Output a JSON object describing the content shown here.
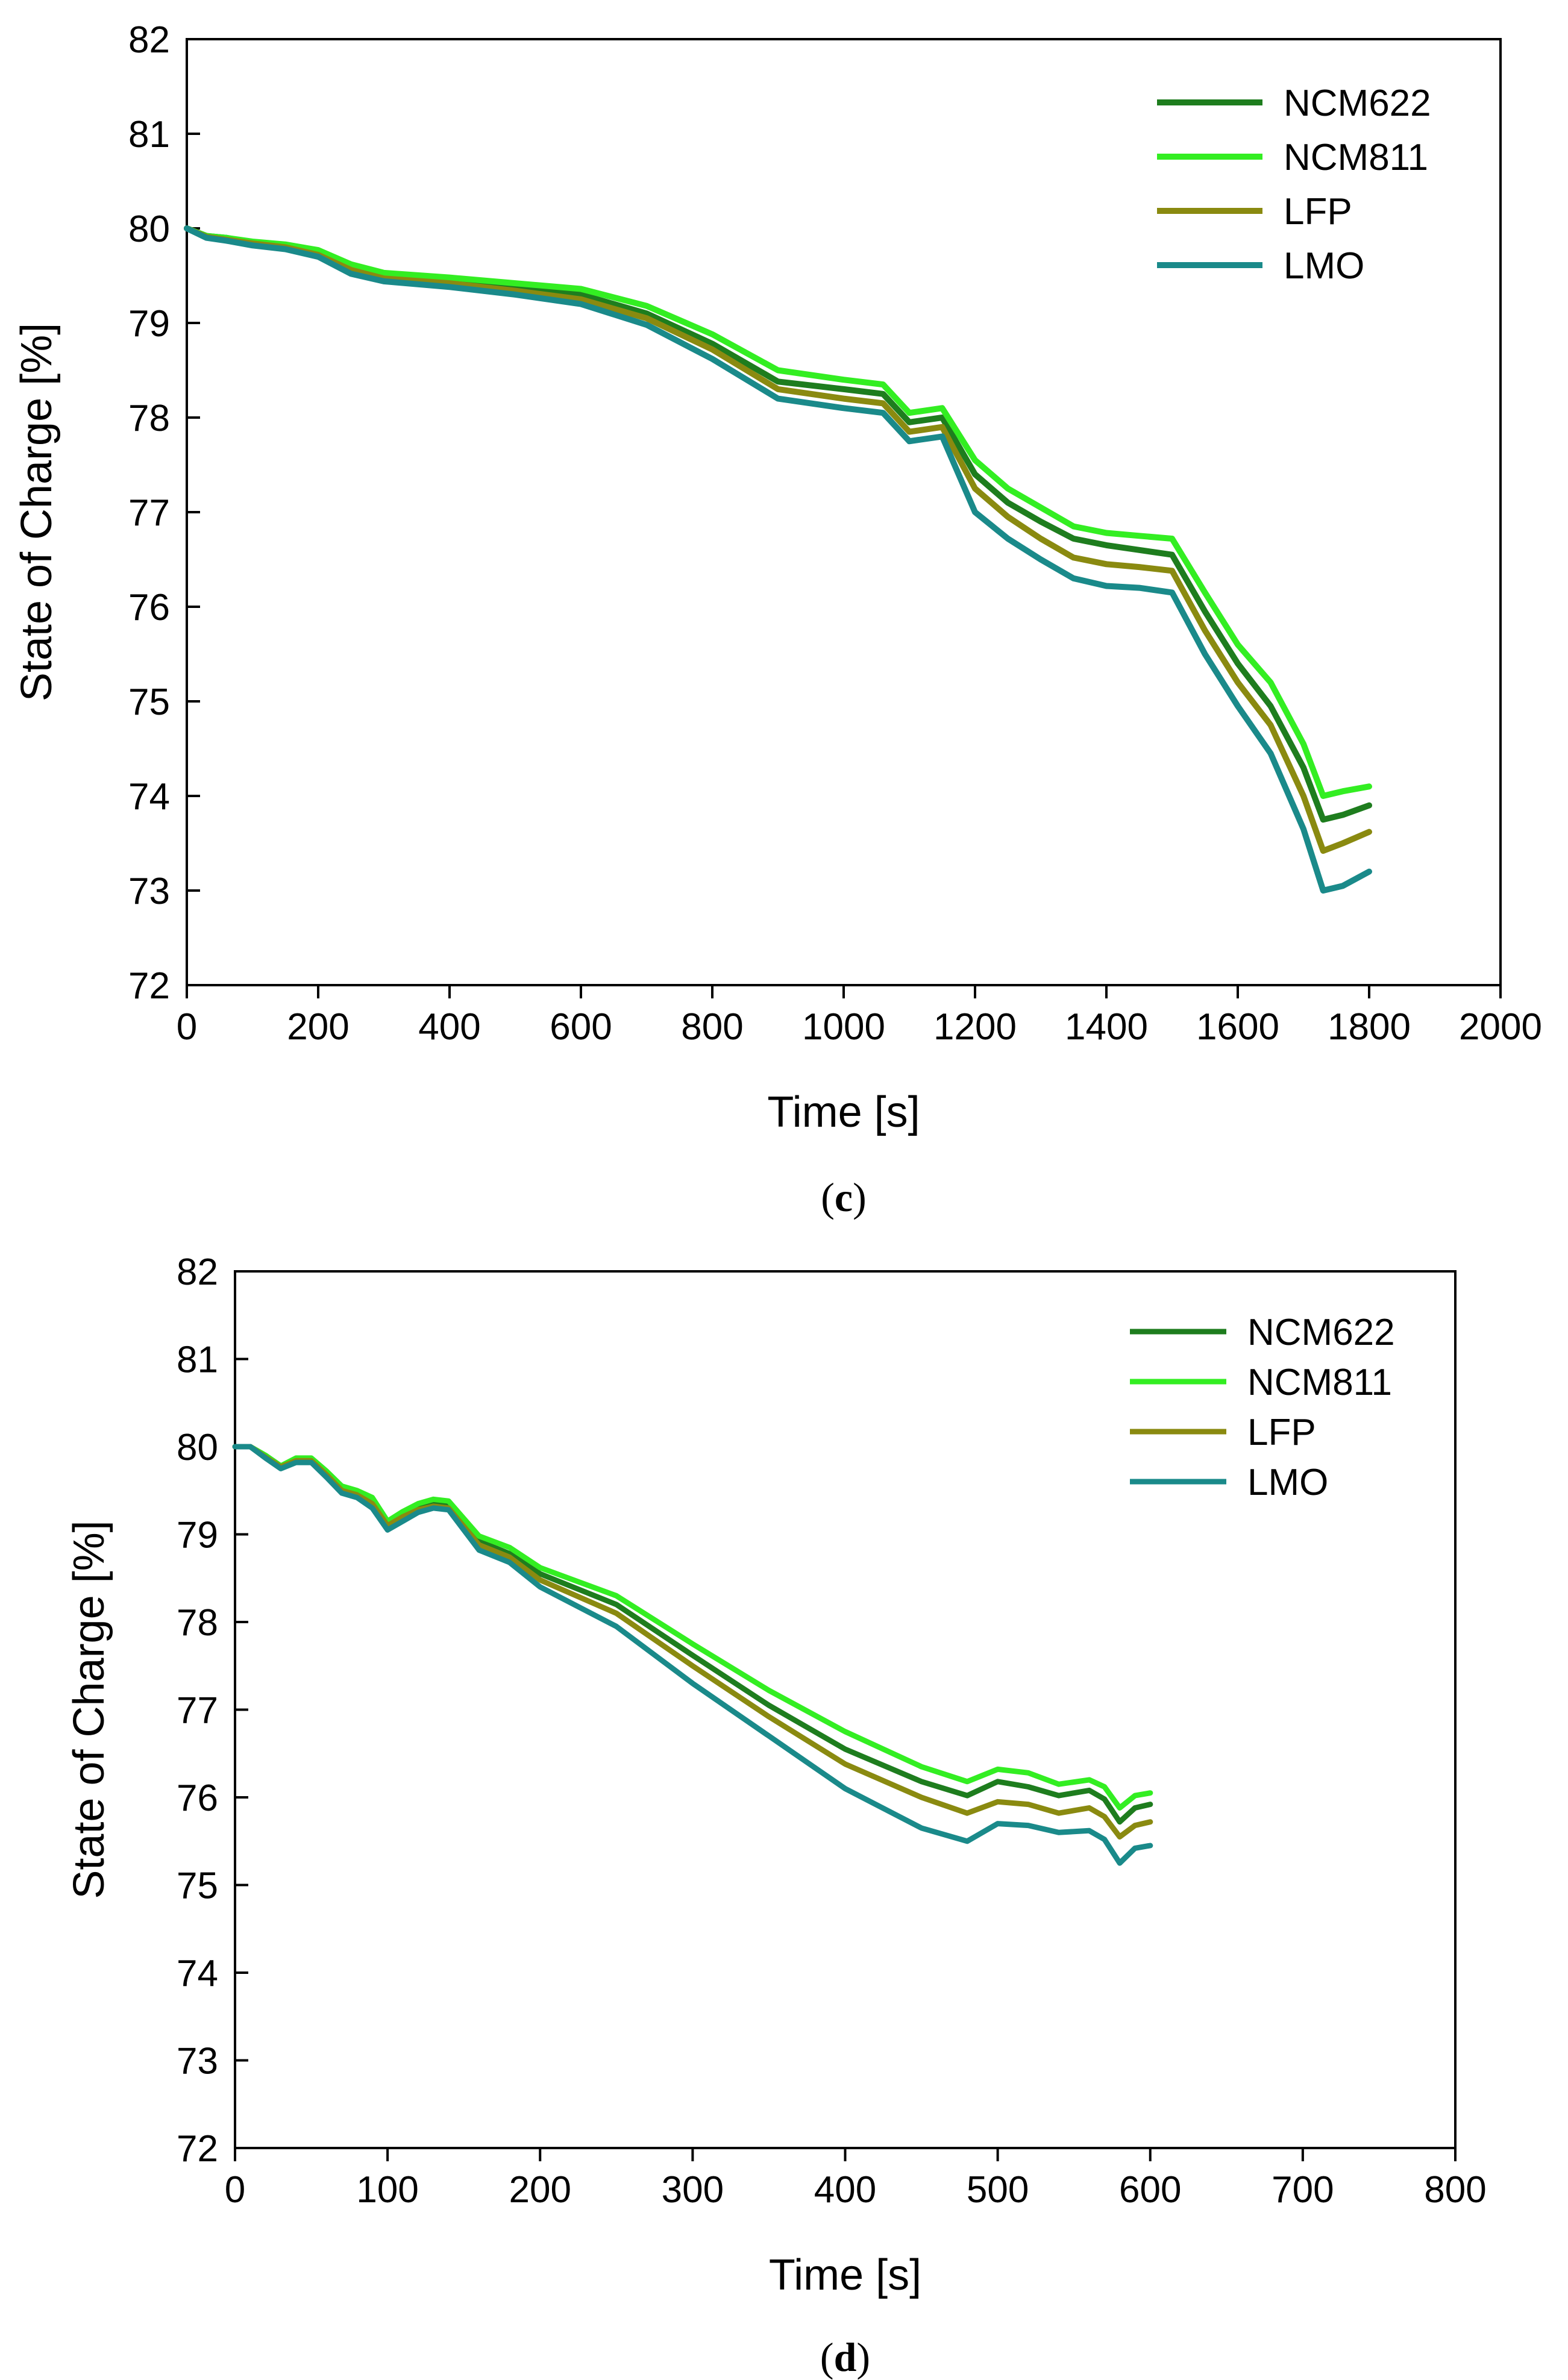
{
  "chart_data": [
    {
      "type": "line",
      "panel_label": "c",
      "xlabel": "Time [s]",
      "ylabel": "State of Charge [%]",
      "xlim": [
        0,
        2000
      ],
      "ylim": [
        72,
        82
      ],
      "xticks": [
        "0",
        "200",
        "400",
        "600",
        "800",
        "1000",
        "1200",
        "1400",
        "1600",
        "1800",
        "2000"
      ],
      "yticks": [
        "72",
        "73",
        "74",
        "75",
        "76",
        "77",
        "78",
        "79",
        "80",
        "81",
        "82"
      ],
      "legend_position": "top-right",
      "series": [
        {
          "name": "NCM622",
          "color": "#1e7d1e",
          "x": [
            0,
            30,
            60,
            100,
            150,
            200,
            250,
            300,
            400,
            500,
            600,
            700,
            800,
            900,
            1000,
            1060,
            1100,
            1150,
            1200,
            1250,
            1300,
            1350,
            1400,
            1450,
            1500,
            1550,
            1600,
            1650,
            1700,
            1730,
            1760,
            1800
          ],
          "y": [
            80.0,
            79.92,
            79.9,
            79.85,
            79.82,
            79.75,
            79.6,
            79.5,
            79.45,
            79.38,
            79.3,
            79.1,
            78.78,
            78.38,
            78.3,
            78.25,
            77.95,
            78.0,
            77.4,
            77.1,
            76.9,
            76.72,
            76.65,
            76.6,
            76.55,
            75.95,
            75.4,
            74.95,
            74.3,
            73.75,
            73.8,
            73.9
          ]
        },
        {
          "name": "NCM811",
          "color": "#33ee22",
          "x": [
            0,
            30,
            60,
            100,
            150,
            200,
            250,
            300,
            400,
            500,
            600,
            700,
            800,
            900,
            1000,
            1060,
            1100,
            1150,
            1200,
            1250,
            1300,
            1350,
            1400,
            1450,
            1500,
            1550,
            1600,
            1650,
            1700,
            1730,
            1760,
            1800
          ],
          "y": [
            80.0,
            79.92,
            79.9,
            79.86,
            79.83,
            79.77,
            79.62,
            79.53,
            79.48,
            79.42,
            79.36,
            79.18,
            78.88,
            78.5,
            78.4,
            78.35,
            78.05,
            78.1,
            77.55,
            77.25,
            77.05,
            76.85,
            76.78,
            76.75,
            76.72,
            76.15,
            75.6,
            75.2,
            74.55,
            74.0,
            74.05,
            74.1
          ]
        },
        {
          "name": "LFP",
          "color": "#8a8a10",
          "x": [
            0,
            30,
            60,
            100,
            150,
            200,
            250,
            300,
            400,
            500,
            600,
            700,
            800,
            900,
            1000,
            1060,
            1100,
            1150,
            1200,
            1250,
            1300,
            1350,
            1400,
            1450,
            1500,
            1550,
            1600,
            1650,
            1700,
            1730,
            1760,
            1800
          ],
          "y": [
            80.0,
            79.91,
            79.88,
            79.84,
            79.8,
            79.72,
            79.56,
            79.47,
            79.42,
            79.34,
            79.25,
            79.05,
            78.72,
            78.3,
            78.2,
            78.15,
            77.85,
            77.9,
            77.25,
            76.95,
            76.72,
            76.52,
            76.45,
            76.42,
            76.38,
            75.75,
            75.2,
            74.75,
            74.0,
            73.42,
            73.5,
            73.62
          ]
        },
        {
          "name": "LMO",
          "color": "#1a8a8a",
          "x": [
            0,
            30,
            60,
            100,
            150,
            200,
            250,
            300,
            400,
            500,
            600,
            700,
            800,
            900,
            1000,
            1060,
            1100,
            1150,
            1200,
            1250,
            1300,
            1350,
            1400,
            1450,
            1500,
            1550,
            1600,
            1650,
            1700,
            1730,
            1760,
            1800
          ],
          "y": [
            80.0,
            79.9,
            79.87,
            79.82,
            79.78,
            79.7,
            79.52,
            79.44,
            79.38,
            79.3,
            79.2,
            78.98,
            78.62,
            78.2,
            78.1,
            78.05,
            77.75,
            77.8,
            77.0,
            76.72,
            76.5,
            76.3,
            76.22,
            76.2,
            76.15,
            75.5,
            74.95,
            74.45,
            73.65,
            73.0,
            73.05,
            73.2
          ]
        }
      ]
    },
    {
      "type": "line",
      "panel_label": "d",
      "xlabel": "Time [s]",
      "ylabel": "State of Charge [%]",
      "xlim": [
        0,
        800
      ],
      "ylim": [
        72,
        82
      ],
      "xticks": [
        "0",
        "100",
        "200",
        "300",
        "400",
        "500",
        "600",
        "700",
        "800"
      ],
      "yticks": [
        "72",
        "73",
        "74",
        "75",
        "76",
        "77",
        "78",
        "79",
        "80",
        "81",
        "82"
      ],
      "legend_position": "top-right",
      "series": [
        {
          "name": "NCM622",
          "color": "#1e7d1e",
          "x": [
            0,
            10,
            20,
            30,
            40,
            50,
            60,
            70,
            80,
            90,
            100,
            110,
            120,
            130,
            140,
            160,
            180,
            200,
            250,
            300,
            350,
            400,
            450,
            480,
            500,
            520,
            540,
            560,
            570,
            580,
            590,
            600
          ],
          "y": [
            80.0,
            80.0,
            79.9,
            79.78,
            79.85,
            79.85,
            79.7,
            79.52,
            79.48,
            79.38,
            79.12,
            79.22,
            79.3,
            79.35,
            79.33,
            78.92,
            78.78,
            78.55,
            78.2,
            77.62,
            77.05,
            76.55,
            76.18,
            76.02,
            76.18,
            76.12,
            76.02,
            76.08,
            75.98,
            75.72,
            75.88,
            75.92
          ]
        },
        {
          "name": "NCM811",
          "color": "#33ee22",
          "x": [
            0,
            10,
            20,
            30,
            40,
            50,
            60,
            70,
            80,
            90,
            100,
            110,
            120,
            130,
            140,
            160,
            180,
            200,
            250,
            300,
            350,
            400,
            450,
            480,
            500,
            520,
            540,
            560,
            570,
            580,
            590,
            600
          ],
          "y": [
            80.0,
            80.0,
            79.9,
            79.78,
            79.87,
            79.87,
            79.72,
            79.55,
            79.5,
            79.42,
            79.15,
            79.26,
            79.35,
            79.4,
            79.38,
            78.98,
            78.85,
            78.62,
            78.3,
            77.75,
            77.22,
            76.75,
            76.35,
            76.18,
            76.32,
            76.28,
            76.15,
            76.2,
            76.12,
            75.88,
            76.02,
            76.05
          ]
        },
        {
          "name": "LFP",
          "color": "#8a8a10",
          "x": [
            0,
            10,
            20,
            30,
            40,
            50,
            60,
            70,
            80,
            90,
            100,
            110,
            120,
            130,
            140,
            160,
            180,
            200,
            250,
            300,
            350,
            400,
            450,
            480,
            500,
            520,
            540,
            560,
            570,
            580,
            590,
            600
          ],
          "y": [
            80.0,
            80.0,
            79.88,
            79.77,
            79.84,
            79.84,
            79.68,
            79.5,
            79.45,
            79.35,
            79.1,
            79.2,
            79.28,
            79.32,
            79.3,
            78.88,
            78.74,
            78.48,
            78.1,
            77.5,
            76.92,
            76.38,
            76.0,
            75.82,
            75.95,
            75.92,
            75.82,
            75.88,
            75.78,
            75.55,
            75.68,
            75.72
          ]
        },
        {
          "name": "LMO",
          "color": "#1a8a8a",
          "x": [
            0,
            10,
            20,
            30,
            40,
            50,
            60,
            70,
            80,
            90,
            100,
            110,
            120,
            130,
            140,
            160,
            180,
            200,
            250,
            300,
            350,
            400,
            450,
            480,
            500,
            520,
            540,
            560,
            570,
            580,
            590,
            600
          ],
          "y": [
            80.0,
            80.0,
            79.87,
            79.75,
            79.82,
            79.82,
            79.65,
            79.47,
            79.42,
            79.3,
            79.05,
            79.15,
            79.25,
            79.3,
            79.28,
            78.82,
            78.68,
            78.4,
            77.95,
            77.3,
            76.7,
            76.1,
            75.65,
            75.5,
            75.7,
            75.68,
            75.6,
            75.62,
            75.52,
            75.25,
            75.42,
            75.45
          ]
        }
      ]
    }
  ]
}
